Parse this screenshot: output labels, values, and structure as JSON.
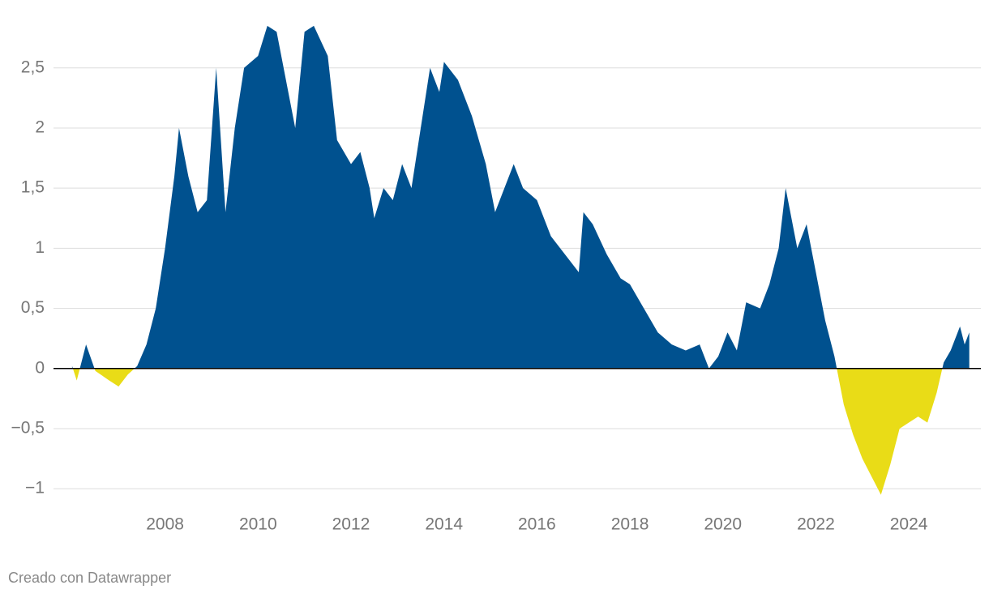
{
  "chart_data": {
    "type": "area",
    "x": [
      2006.0,
      2006.1,
      2006.3,
      2006.5,
      2006.8,
      2007.0,
      2007.2,
      2007.4,
      2007.6,
      2007.8,
      2008.0,
      2008.2,
      2008.3,
      2008.5,
      2008.7,
      2008.9,
      2009.1,
      2009.3,
      2009.5,
      2009.7,
      2010.0,
      2010.2,
      2010.4,
      2010.6,
      2010.8,
      2011.0,
      2011.2,
      2011.5,
      2011.7,
      2012.0,
      2012.2,
      2012.4,
      2012.5,
      2012.7,
      2012.9,
      2013.1,
      2013.3,
      2013.5,
      2013.7,
      2013.9,
      2014.0,
      2014.3,
      2014.6,
      2014.9,
      2015.1,
      2015.3,
      2015.5,
      2015.7,
      2016.0,
      2016.3,
      2016.6,
      2016.9,
      2017.0,
      2017.2,
      2017.5,
      2017.8,
      2018.0,
      2018.3,
      2018.6,
      2018.9,
      2019.2,
      2019.5,
      2019.7,
      2019.9,
      2020.1,
      2020.3,
      2020.5,
      2020.8,
      2021.0,
      2021.2,
      2021.35,
      2021.6,
      2021.8,
      2022.0,
      2022.2,
      2022.4,
      2022.6,
      2022.8,
      2023.0,
      2023.2,
      2023.4,
      2023.6,
      2023.8,
      2024.0,
      2024.2,
      2024.4,
      2024.6,
      2024.75,
      2024.9,
      2025.1,
      2025.2,
      2025.3
    ],
    "values": [
      0.02,
      -0.1,
      0.2,
      -0.02,
      -0.1,
      -0.15,
      -0.05,
      0.02,
      0.2,
      0.5,
      1.0,
      1.6,
      2.0,
      1.6,
      1.3,
      1.4,
      2.5,
      1.3,
      2.0,
      2.5,
      2.6,
      2.85,
      2.8,
      2.4,
      2.0,
      2.8,
      2.85,
      2.6,
      1.9,
      1.7,
      1.8,
      1.5,
      1.25,
      1.5,
      1.4,
      1.7,
      1.5,
      2.0,
      2.5,
      2.3,
      2.55,
      2.4,
      2.1,
      1.7,
      1.3,
      1.5,
      1.7,
      1.5,
      1.4,
      1.1,
      0.95,
      0.8,
      1.3,
      1.2,
      0.95,
      0.75,
      0.7,
      0.5,
      0.3,
      0.2,
      0.15,
      0.2,
      0.0,
      0.1,
      0.3,
      0.15,
      0.55,
      0.5,
      0.7,
      1.0,
      1.5,
      1.0,
      1.2,
      0.8,
      0.4,
      0.1,
      -0.3,
      -0.55,
      -0.75,
      -0.9,
      -1.05,
      -0.8,
      -0.5,
      -0.45,
      -0.4,
      -0.45,
      -0.2,
      0.05,
      0.15,
      0.35,
      0.2,
      0.3
    ],
    "color": "#00518f",
    "negative_color": "#e9dc17",
    "xlim": [
      2005.6,
      2025.55
    ],
    "xticks": [
      2008,
      2010,
      2012,
      2014,
      2016,
      2018,
      2020,
      2022,
      2024
    ],
    "ylim": [
      -1.1,
      2.95
    ],
    "yticks": [
      {
        "value": -1,
        "label": "−1"
      },
      {
        "value": -0.5,
        "label": "−0,5"
      },
      0,
      {
        "value": 0.5,
        "label": "0,5"
      },
      1,
      {
        "value": 1.5,
        "label": "1,5"
      },
      2,
      {
        "value": 2.5,
        "label": "2,5"
      }
    ],
    "grid": true,
    "footer": "Creado con Datawrapper"
  }
}
